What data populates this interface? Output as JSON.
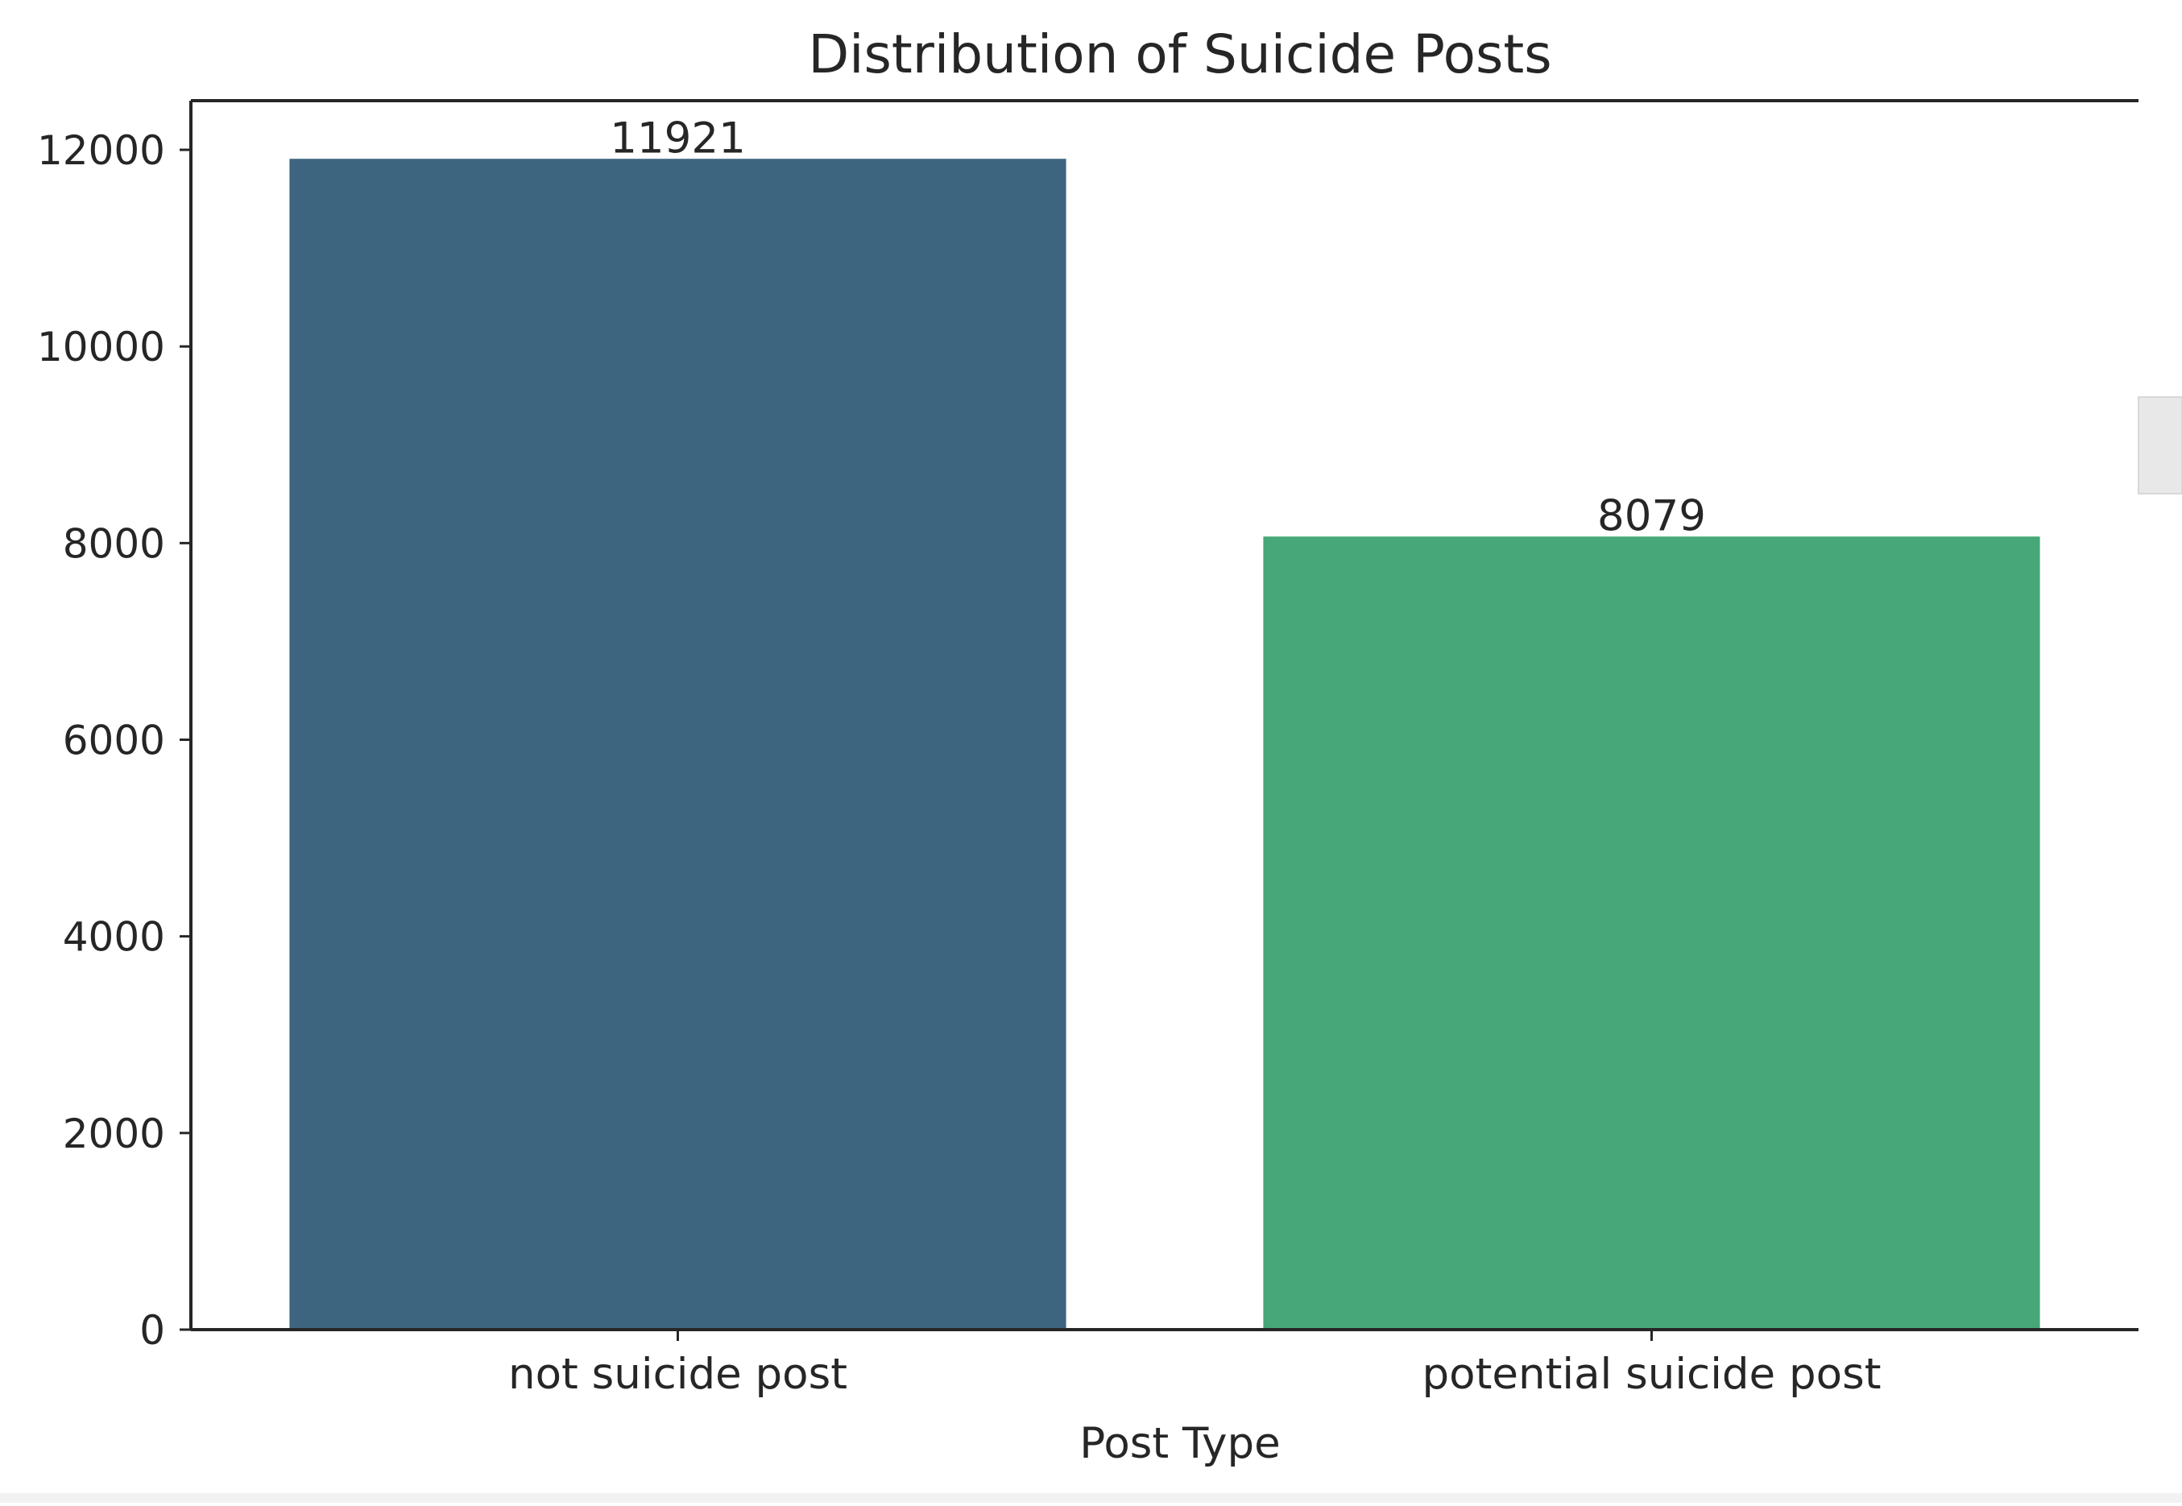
{
  "chart_data": {
    "type": "bar",
    "title": "Distribution of Suicide Posts",
    "xlabel": "Post Type",
    "ylabel": "",
    "categories": [
      "not suicide post",
      "potential suicide post"
    ],
    "values": [
      11921,
      8079
    ],
    "data_labels": [
      "11921",
      "8079"
    ],
    "bar_colors": [
      "#3e6580",
      "#47a778"
    ],
    "ylim": [
      0,
      12500
    ],
    "yticks": [
      0,
      2000,
      4000,
      6000,
      8000,
      10000,
      12000
    ],
    "ytick_labels": [
      "0",
      "2000",
      "4000",
      "6000",
      "8000",
      "10000",
      "12000"
    ],
    "grid": false,
    "legend": "none"
  }
}
